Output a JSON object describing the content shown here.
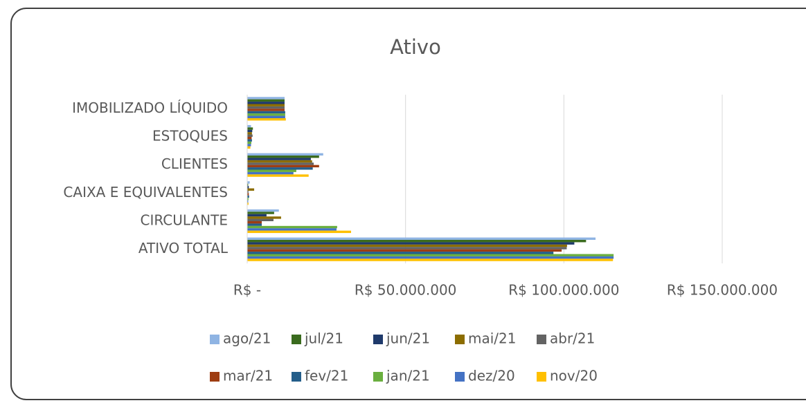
{
  "chart_data": {
    "type": "hbar",
    "title": "Ativo",
    "categories": [
      "IMOBILIZADO LÍQUIDO",
      "ESTOQUES",
      "CLIENTES",
      "CAIXA E EQUIVALENTES",
      "CIRCULANTE",
      "ATIVO TOTAL"
    ],
    "series": [
      {
        "name": "ago/21",
        "color": "#8fb4e3",
        "values": [
          11800000,
          1200000,
          24000000,
          800000,
          10000000,
          110000000
        ]
      },
      {
        "name": "jul/21",
        "color": "#3a6b1e",
        "values": [
          11800000,
          1800000,
          22700000,
          300000,
          8500000,
          107000000
        ]
      },
      {
        "name": "jun/21",
        "color": "#1f3a6b",
        "values": [
          11800000,
          1600000,
          20100000,
          500000,
          6100000,
          103300000
        ]
      },
      {
        "name": "mai/21",
        "color": "#8c6d00",
        "values": [
          11800000,
          1500000,
          20500000,
          2200000,
          10700000,
          101000000
        ]
      },
      {
        "name": "abr/21",
        "color": "#636363",
        "values": [
          11800000,
          1700000,
          21000000,
          400000,
          8300000,
          100900000
        ]
      },
      {
        "name": "mar/21",
        "color": "#9e3d12",
        "values": [
          11800000,
          1400000,
          22700000,
          500000,
          4600000,
          99300000
        ]
      },
      {
        "name": "fev/21",
        "color": "#245e8a",
        "values": [
          12000000,
          1500000,
          20700000,
          600000,
          4600000,
          96700000
        ]
      },
      {
        "name": "jan/21",
        "color": "#6aaf3f",
        "values": [
          12000000,
          1300000,
          15500000,
          400000,
          28400000,
          115700000
        ]
      },
      {
        "name": "dez/20",
        "color": "#4472c4",
        "values": [
          12000000,
          1200000,
          14600000,
          300000,
          28200000,
          115700000
        ]
      },
      {
        "name": "nov/20",
        "color": "#ffc000",
        "values": [
          12200000,
          1000000,
          19400000,
          400000,
          32800000,
          115500000
        ]
      }
    ],
    "xlim": [
      0,
      150000000
    ],
    "xticks": [
      {
        "value": 0,
        "label": "R$ -"
      },
      {
        "value": 50000000,
        "label": "R$ 50.000.000"
      },
      {
        "value": 100000000,
        "label": "R$ 100.000.000"
      },
      {
        "value": 150000000,
        "label": "R$ 150.000.000"
      }
    ],
    "grid": true
  }
}
